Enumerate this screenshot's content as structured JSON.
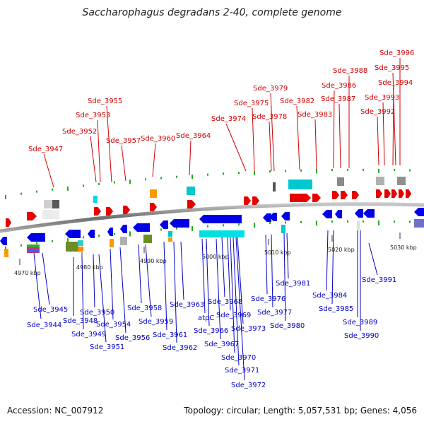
{
  "title": "Saccharophagus degradans 2-40, complete genome",
  "footer": {
    "accession": "Accession: NC_007912",
    "info": "Topology: circular; Length: 5,057,531 bp; Genes: 4,056"
  },
  "colors": {
    "forward_gene": "#e60000",
    "reverse_gene": "#0000e6",
    "forward_label": "#d00000",
    "reverse_label": "#0000c8",
    "backbone": "#808080",
    "ticks": "#22aa22"
  },
  "scale": {
    "labels": [
      "4970 kbp",
      "4980 kbp",
      "4990 kbp",
      "5000 kbp",
      "5010 kbp",
      "5020 kbp",
      "5030 kbp"
    ]
  },
  "top_labels": [
    "Sde_3947",
    "Sde_3952",
    "Sde_3953",
    "Sde_3955",
    "Sde_3957",
    "Sde_3960",
    "Sde_3964",
    "Sde_3974",
    "Sde_3975",
    "Sde_3978",
    "Sde_3979",
    "Sde_3982",
    "Sde_3983",
    "Sde_3986",
    "Sde_3987",
    "Sde_3988",
    "Sde_3992",
    "Sde_3993",
    "Sde_3994",
    "Sde_3995",
    "Sde_3996"
  ],
  "bottom_labels": [
    "Sde_3944",
    "Sde_3945",
    "Sde_3948",
    "Sde_3949",
    "Sde_3950",
    "Sde_3951",
    "Sde_3954",
    "Sde_3956",
    "Sde_3958",
    "Sde_3959",
    "Sde_3961",
    "Sde_3962",
    "Sde_3963",
    "atpC",
    "Sde_3966",
    "Sde_3967",
    "Sde_3968",
    "Sde_3969",
    "Sde_3970",
    "Sde_3971",
    "Sde_3972",
    "Sde_3973",
    "Sde_3976",
    "Sde_3977",
    "Sde_3980",
    "Sde_3981",
    "Sde_3984",
    "Sde_3985",
    "Sde_3989",
    "Sde_3990",
    "Sde_3991"
  ]
}
